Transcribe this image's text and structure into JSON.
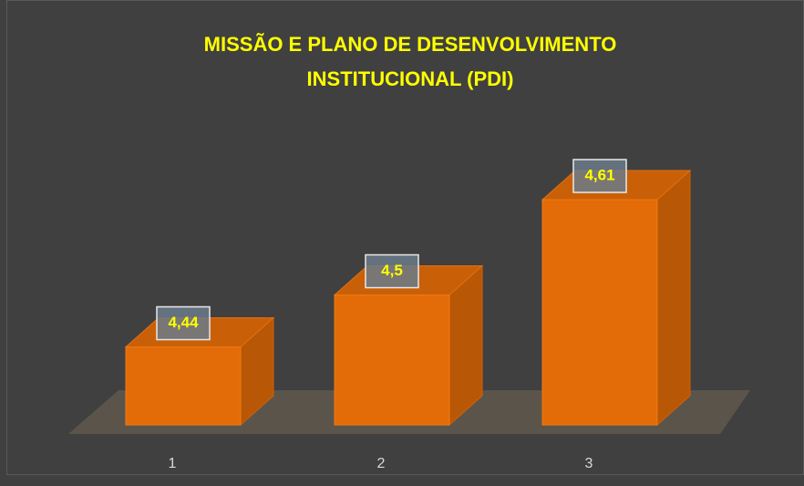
{
  "chart_data": {
    "type": "bar3d",
    "title": [
      "MISSÃO E PLANO DE DESENVOLVIMENTO",
      "INSTITUCIONAL (PDI)"
    ],
    "categories": [
      "1",
      "2",
      "3"
    ],
    "values": [
      4.44,
      4.5,
      4.61
    ],
    "value_labels": [
      "4,44",
      "4,5",
      "4,61"
    ],
    "color": "#e36c09",
    "ylim": [
      4.35,
      4.65
    ]
  }
}
